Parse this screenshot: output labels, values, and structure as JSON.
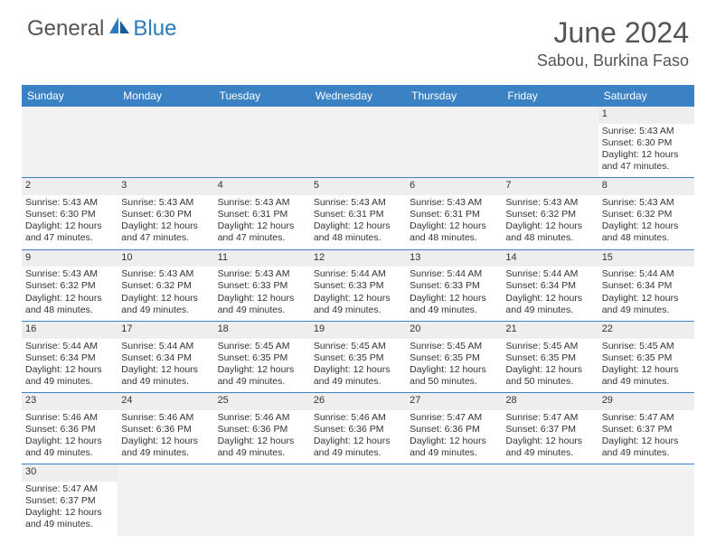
{
  "brand": {
    "name1": "General",
    "name2": "Blue"
  },
  "title": "June 2024",
  "location": "Sabou, Burkina Faso",
  "colors": {
    "header_bg": "#3b82c4",
    "header_text": "#ffffff",
    "border": "#3b82c4",
    "empty_bg": "#f2f2f2",
    "text": "#333333",
    "brand_gray": "#555555",
    "brand_blue": "#2b7bbf"
  },
  "day_headers": [
    "Sunday",
    "Monday",
    "Tuesday",
    "Wednesday",
    "Thursday",
    "Friday",
    "Saturday"
  ],
  "weeks": [
    [
      null,
      null,
      null,
      null,
      null,
      null,
      {
        "n": "1",
        "sr": "5:43 AM",
        "ss": "6:30 PM",
        "dl": "12 hours and 47 minutes."
      }
    ],
    [
      {
        "n": "2",
        "sr": "5:43 AM",
        "ss": "6:30 PM",
        "dl": "12 hours and 47 minutes."
      },
      {
        "n": "3",
        "sr": "5:43 AM",
        "ss": "6:30 PM",
        "dl": "12 hours and 47 minutes."
      },
      {
        "n": "4",
        "sr": "5:43 AM",
        "ss": "6:31 PM",
        "dl": "12 hours and 47 minutes."
      },
      {
        "n": "5",
        "sr": "5:43 AM",
        "ss": "6:31 PM",
        "dl": "12 hours and 48 minutes."
      },
      {
        "n": "6",
        "sr": "5:43 AM",
        "ss": "6:31 PM",
        "dl": "12 hours and 48 minutes."
      },
      {
        "n": "7",
        "sr": "5:43 AM",
        "ss": "6:32 PM",
        "dl": "12 hours and 48 minutes."
      },
      {
        "n": "8",
        "sr": "5:43 AM",
        "ss": "6:32 PM",
        "dl": "12 hours and 48 minutes."
      }
    ],
    [
      {
        "n": "9",
        "sr": "5:43 AM",
        "ss": "6:32 PM",
        "dl": "12 hours and 48 minutes."
      },
      {
        "n": "10",
        "sr": "5:43 AM",
        "ss": "6:32 PM",
        "dl": "12 hours and 49 minutes."
      },
      {
        "n": "11",
        "sr": "5:43 AM",
        "ss": "6:33 PM",
        "dl": "12 hours and 49 minutes."
      },
      {
        "n": "12",
        "sr": "5:44 AM",
        "ss": "6:33 PM",
        "dl": "12 hours and 49 minutes."
      },
      {
        "n": "13",
        "sr": "5:44 AM",
        "ss": "6:33 PM",
        "dl": "12 hours and 49 minutes."
      },
      {
        "n": "14",
        "sr": "5:44 AM",
        "ss": "6:34 PM",
        "dl": "12 hours and 49 minutes."
      },
      {
        "n": "15",
        "sr": "5:44 AM",
        "ss": "6:34 PM",
        "dl": "12 hours and 49 minutes."
      }
    ],
    [
      {
        "n": "16",
        "sr": "5:44 AM",
        "ss": "6:34 PM",
        "dl": "12 hours and 49 minutes."
      },
      {
        "n": "17",
        "sr": "5:44 AM",
        "ss": "6:34 PM",
        "dl": "12 hours and 49 minutes."
      },
      {
        "n": "18",
        "sr": "5:45 AM",
        "ss": "6:35 PM",
        "dl": "12 hours and 49 minutes."
      },
      {
        "n": "19",
        "sr": "5:45 AM",
        "ss": "6:35 PM",
        "dl": "12 hours and 49 minutes."
      },
      {
        "n": "20",
        "sr": "5:45 AM",
        "ss": "6:35 PM",
        "dl": "12 hours and 50 minutes."
      },
      {
        "n": "21",
        "sr": "5:45 AM",
        "ss": "6:35 PM",
        "dl": "12 hours and 50 minutes."
      },
      {
        "n": "22",
        "sr": "5:45 AM",
        "ss": "6:35 PM",
        "dl": "12 hours and 49 minutes."
      }
    ],
    [
      {
        "n": "23",
        "sr": "5:46 AM",
        "ss": "6:36 PM",
        "dl": "12 hours and 49 minutes."
      },
      {
        "n": "24",
        "sr": "5:46 AM",
        "ss": "6:36 PM",
        "dl": "12 hours and 49 minutes."
      },
      {
        "n": "25",
        "sr": "5:46 AM",
        "ss": "6:36 PM",
        "dl": "12 hours and 49 minutes."
      },
      {
        "n": "26",
        "sr": "5:46 AM",
        "ss": "6:36 PM",
        "dl": "12 hours and 49 minutes."
      },
      {
        "n": "27",
        "sr": "5:47 AM",
        "ss": "6:36 PM",
        "dl": "12 hours and 49 minutes."
      },
      {
        "n": "28",
        "sr": "5:47 AM",
        "ss": "6:37 PM",
        "dl": "12 hours and 49 minutes."
      },
      {
        "n": "29",
        "sr": "5:47 AM",
        "ss": "6:37 PM",
        "dl": "12 hours and 49 minutes."
      }
    ],
    [
      {
        "n": "30",
        "sr": "5:47 AM",
        "ss": "6:37 PM",
        "dl": "12 hours and 49 minutes."
      },
      null,
      null,
      null,
      null,
      null,
      null
    ]
  ],
  "labels": {
    "sunrise": "Sunrise:",
    "sunset": "Sunset:",
    "daylight": "Daylight:"
  }
}
